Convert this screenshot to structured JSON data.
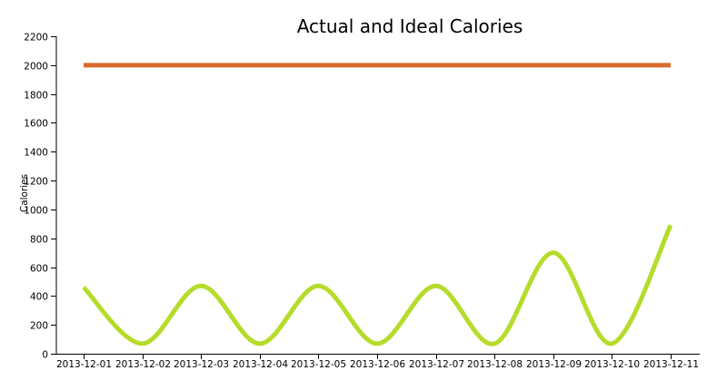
{
  "chart_data": {
    "type": "line",
    "title": "Actual and Ideal Calories",
    "xlabel": "",
    "ylabel": "Calories",
    "x": [
      "2013-12-01",
      "2013-12-02",
      "2013-12-03",
      "2013-12-04",
      "2013-12-05",
      "2013-12-06",
      "2013-12-07",
      "2013-12-08",
      "2013-12-09",
      "2013-12-10",
      "2013-12-11"
    ],
    "ylim": [
      0,
      2200
    ],
    "yticks": [
      0,
      200,
      400,
      600,
      800,
      1000,
      1200,
      1400,
      1600,
      1800,
      2000,
      2200
    ],
    "ytick_labels": [
      "0",
      "200",
      "400",
      "600",
      "800",
      "1000",
      "1200",
      "1400",
      "1600",
      "1800",
      "2000",
      "2200"
    ],
    "grid": false,
    "legend": "none",
    "interpolation": "smooth",
    "series": [
      {
        "values": [
          460,
          70,
          470,
          70,
          470,
          70,
          470,
          70,
          700,
          70,
          890
        ],
        "color": "#b5dc2b"
      },
      {
        "values": [
          2000,
          2000,
          2000,
          2000,
          2000,
          2000,
          2000,
          2000,
          2000,
          2000,
          2000
        ],
        "color": "#dc6a2f"
      }
    ]
  }
}
